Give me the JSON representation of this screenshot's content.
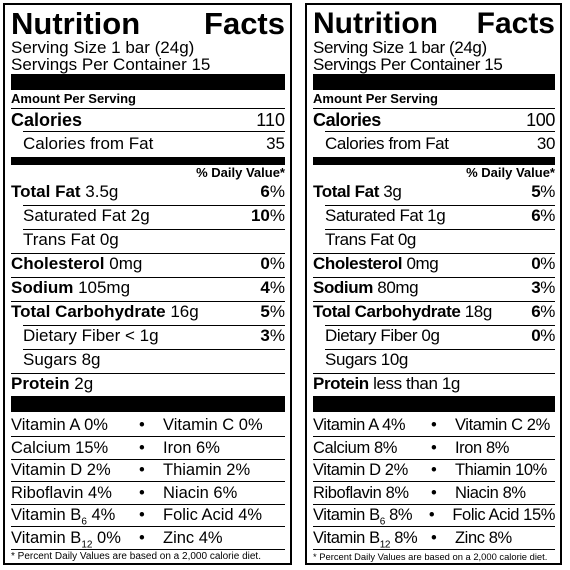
{
  "left": {
    "title_a": "Nutrition",
    "title_b": "Facts",
    "serving_size": "Serving Size 1 bar (24g)",
    "servings_per_container": "Servings Per Container 15",
    "amount_per_serving": "Amount Per Serving",
    "calories_label": "Calories",
    "calories_value": "110",
    "calories_fat_label": "Calories from Fat",
    "calories_fat_value": "35",
    "daily_value_header": "% Daily Value*",
    "nutrients": [
      {
        "name": "Total Fat",
        "amount": "3.5g",
        "dv_num": "6",
        "dv_pct": "%"
      },
      {
        "name": "Saturated Fat",
        "amount": "2g",
        "dv_num": "10",
        "dv_pct": "%"
      },
      {
        "name": "Trans Fat",
        "amount": "0g"
      },
      {
        "name": "Cholesterol",
        "amount": "0mg",
        "dv_num": "0",
        "dv_pct": "%"
      },
      {
        "name": "Sodium",
        "amount": "105mg",
        "dv_num": "4",
        "dv_pct": "%"
      },
      {
        "name": "Total Carbohydrate",
        "amount": "16g",
        "dv_num": "5",
        "dv_pct": "%"
      },
      {
        "name": "Dietary Fiber",
        "amount": "< 1g",
        "dv_num": "3",
        "dv_pct": "%"
      },
      {
        "name": "Sugars",
        "amount": "8g"
      },
      {
        "name": "Protein",
        "amount": "2g"
      }
    ],
    "vitamins": [
      [
        "Vitamin A 0%",
        "Vitamin C 0%"
      ],
      [
        "Calcium 15%",
        "Iron 6%"
      ],
      [
        "Vitamin D 2%",
        "Thiamin 2%"
      ],
      [
        "Riboflavin 4%",
        "Niacin 6%"
      ]
    ],
    "vitb6_name": "Vitamin B",
    "vitb6_sub": "6",
    "vitb6_value": "4%",
    "folic": "Folic Acid 4%",
    "vitb12_name": "Vitamin B",
    "vitb12_sub": "12",
    "vitb12_value": "0%",
    "zinc": "Zinc 4%",
    "footnote": "* Percent Daily Values are based on a 2,000 calorie diet."
  },
  "right": {
    "title_a": "Nutrition",
    "title_b": "Facts",
    "serving_size": "Serving Size 1 bar (24g)",
    "servings_per_container": "Servings Per Container 15",
    "amount_per_serving": "Amount Per Serving",
    "calories_label": "Calories",
    "calories_value": "100",
    "calories_fat_label": "Calories from Fat",
    "calories_fat_value": "30",
    "daily_value_header": "% Daily Value*",
    "nutrients": [
      {
        "name": "Total Fat",
        "amount": "3g",
        "dv_num": "5",
        "dv_pct": "%"
      },
      {
        "name": "Saturated Fat",
        "amount": "1g",
        "dv_num": "6",
        "dv_pct": "%"
      },
      {
        "name": "Trans Fat",
        "amount": "0g"
      },
      {
        "name": "Cholesterol",
        "amount": "0mg",
        "dv_num": "0",
        "dv_pct": "%"
      },
      {
        "name": "Sodium",
        "amount": "80mg",
        "dv_num": "3",
        "dv_pct": "%"
      },
      {
        "name": "Total Carbohydrate",
        "amount": "18g",
        "dv_num": "6",
        "dv_pct": "%"
      },
      {
        "name": "Dietary Fiber",
        "amount": "0g",
        "dv_num": "0",
        "dv_pct": "%"
      },
      {
        "name": "Sugars",
        "amount": "10g"
      },
      {
        "name": "Protein",
        "amount": "less than 1g"
      }
    ],
    "vitamins": [
      [
        "Vitamin A 4%",
        "Vitamin C 2%"
      ],
      [
        "Calcium 8%",
        "Iron 8%"
      ],
      [
        "Vitamin D 2%",
        "Thiamin 10%"
      ],
      [
        "Riboflavin 8%",
        "Niacin 8%"
      ]
    ],
    "vitb6_name": "Vitamin B",
    "vitb6_sub": "6",
    "vitb6_value": "8%",
    "folic": "Folic Acid 15%",
    "vitb12_name": "Vitamin B",
    "vitb12_sub": "12",
    "vitb12_value": "8%",
    "zinc": "Zinc 8%",
    "footnote": "* Percent Daily Values are based on a 2,000 calorie diet."
  }
}
